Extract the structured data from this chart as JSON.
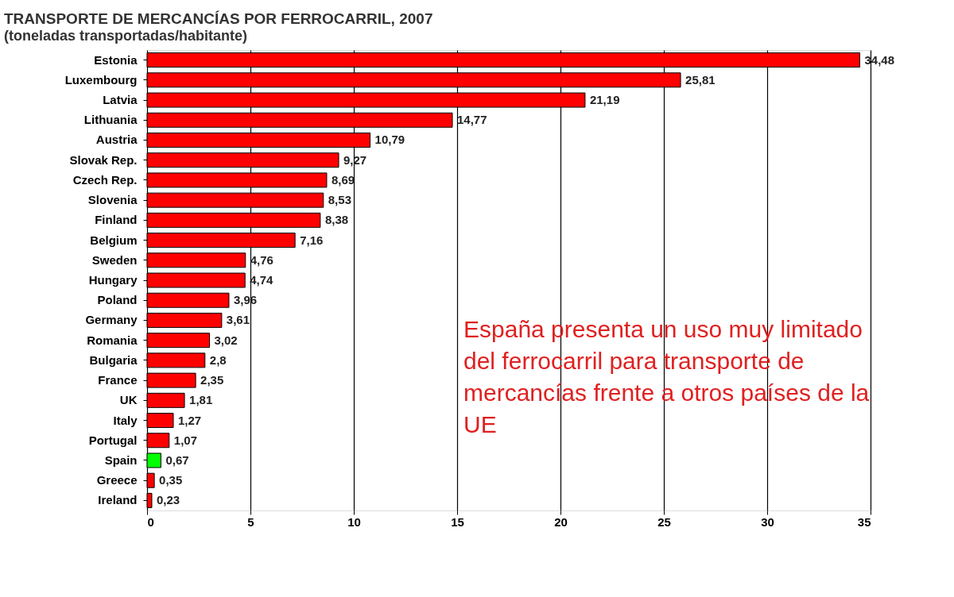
{
  "chart_data": {
    "type": "bar",
    "orientation": "horizontal",
    "title": "TRANSPORTE DE MERCANCÍAS POR FERROCARRIL, 2007",
    "subtitle": "(toneladas transportadas/habitante)",
    "categories": [
      "Estonia",
      "Luxembourg",
      "Latvia",
      "Lithuania",
      "Austria",
      "Slovak Rep.",
      "Czech Rep.",
      "Slovenia",
      "Finland",
      "Belgium",
      "Sweden",
      "Hungary",
      "Poland",
      "Germany",
      "Romania",
      "Bulgaria",
      "France",
      "UK",
      "Italy",
      "Portugal",
      "Spain",
      "Greece",
      "Ireland"
    ],
    "values": [
      34.48,
      25.81,
      21.19,
      14.77,
      10.79,
      9.27,
      8.69,
      8.53,
      8.38,
      7.16,
      4.76,
      4.74,
      3.96,
      3.61,
      3.02,
      2.8,
      2.35,
      1.81,
      1.27,
      1.07,
      0.67,
      0.35,
      0.23
    ],
    "value_labels": [
      "34,48",
      "25,81",
      "21,19",
      "14,77",
      "10,79",
      "9,27",
      "8,69",
      "8,53",
      "8,38",
      "7,16",
      "4,76",
      "4,74",
      "3,96",
      "3,61",
      "3,02",
      "2,8",
      "2,35",
      "1,81",
      "1,27",
      "1,07",
      "0,67",
      "0,35",
      "0,23"
    ],
    "colors": [
      "#ff0000",
      "#ff0000",
      "#ff0000",
      "#ff0000",
      "#ff0000",
      "#ff0000",
      "#ff0000",
      "#ff0000",
      "#ff0000",
      "#ff0000",
      "#ff0000",
      "#ff0000",
      "#ff0000",
      "#ff0000",
      "#ff0000",
      "#ff0000",
      "#ff0000",
      "#ff0000",
      "#ff0000",
      "#ff0000",
      "#00ff00",
      "#ff0000",
      "#ff0000"
    ],
    "xlim": [
      0,
      35
    ],
    "xticks": [
      0,
      5,
      10,
      15,
      20,
      25,
      30,
      35
    ],
    "grid": "x",
    "annotations": [
      "España presenta un uso muy limitado del ferrocarril para transporte de mercancías frente a otros países de la UE"
    ]
  }
}
